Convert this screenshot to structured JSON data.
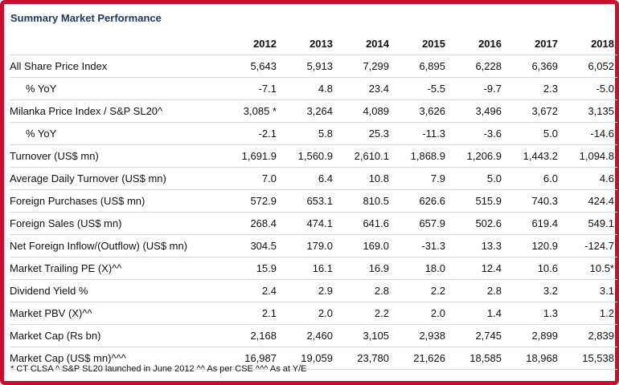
{
  "title": "Summary Market Performance",
  "years": [
    "2012",
    "2013",
    "2014",
    "2015",
    "2016",
    "2017",
    "2018"
  ],
  "rows": [
    {
      "label": "All Share Price Index",
      "values": [
        "5,643",
        "5,913",
        "7,299",
        "6,895",
        "6,228",
        "6,369",
        "6,052"
      ]
    },
    {
      "label": "% YoY",
      "values": [
        "-7.1",
        "4.8",
        "23.4",
        "-5.5",
        "-9.7",
        "2.3",
        "-5.0"
      ]
    },
    {
      "label": "Milanka Price Index / S&P SL20^",
      "values": [
        "3,085 *",
        "3,264",
        "4,089",
        "3,626",
        "3,496",
        "3,672",
        "3,135"
      ]
    },
    {
      "label": "% YoY",
      "values": [
        "-2.1",
        "5.8",
        "25.3",
        "-11.3",
        "-3.6",
        "5.0",
        "-14.6"
      ]
    },
    {
      "label": "Turnover (US$ mn)",
      "values": [
        "1,691.9",
        "1,560.9",
        "2,610.1",
        "1,868.9",
        "1,206.9",
        "1,443.2",
        "1,094.8"
      ]
    },
    {
      "label": "Average Daily Turnover (US$ mn)",
      "values": [
        "7.0",
        "6.4",
        "10.8",
        "7.9",
        "5.0",
        "6.0",
        "4.6"
      ]
    },
    {
      "label": "Foreign Purchases (US$ mn)",
      "values": [
        "572.9",
        "653.1",
        "810.5",
        "626.6",
        "515.9",
        "740.3",
        "424.4"
      ]
    },
    {
      "label": "Foreign Sales (US$ mn)",
      "values": [
        "268.4",
        "474.1",
        "641.6",
        "657.9",
        "502.6",
        "619.4",
        "549.1"
      ]
    },
    {
      "label": "Net Foreign Inflow/(Outflow) (US$ mn)",
      "values": [
        "304.5",
        "179.0",
        "169.0",
        "-31.3",
        "13.3",
        "120.9",
        "-124.7"
      ]
    },
    {
      "label": "Market Trailing PE (X)^^",
      "values": [
        "15.9",
        "16.1",
        "16.9",
        "18.0",
        "12.4",
        "10.6",
        "10.5*"
      ]
    },
    {
      "label": "Dividend Yield %",
      "values": [
        "2.4",
        "2.9",
        "2.8",
        "2.2",
        "2.8",
        "3.2",
        "3.1"
      ]
    },
    {
      "label": "Market PBV (X)^^",
      "values": [
        "2.1",
        "2.0",
        "2.2",
        "2.0",
        "1.4",
        "1.3",
        "1.2"
      ]
    },
    {
      "label": "Market Cap (Rs bn)",
      "values": [
        "2,168",
        "2,460",
        "3,105",
        "2,938",
        "2,745",
        "2,899",
        "2,839"
      ]
    },
    {
      "label": "Market Cap (US$ mn)^^^",
      "values": [
        "16,987",
        "19,059",
        "23,780",
        "21,626",
        "18,585",
        "18,968",
        "15,538"
      ]
    }
  ],
  "footnote": "* CT CLSA ^ S&P SL20 launched in June 2012 ^^ As per CSE ^^^ As at Y/E",
  "colors": {
    "border": "#c8102e",
    "title": "#1f3864",
    "rule": "#d9d9d9"
  }
}
